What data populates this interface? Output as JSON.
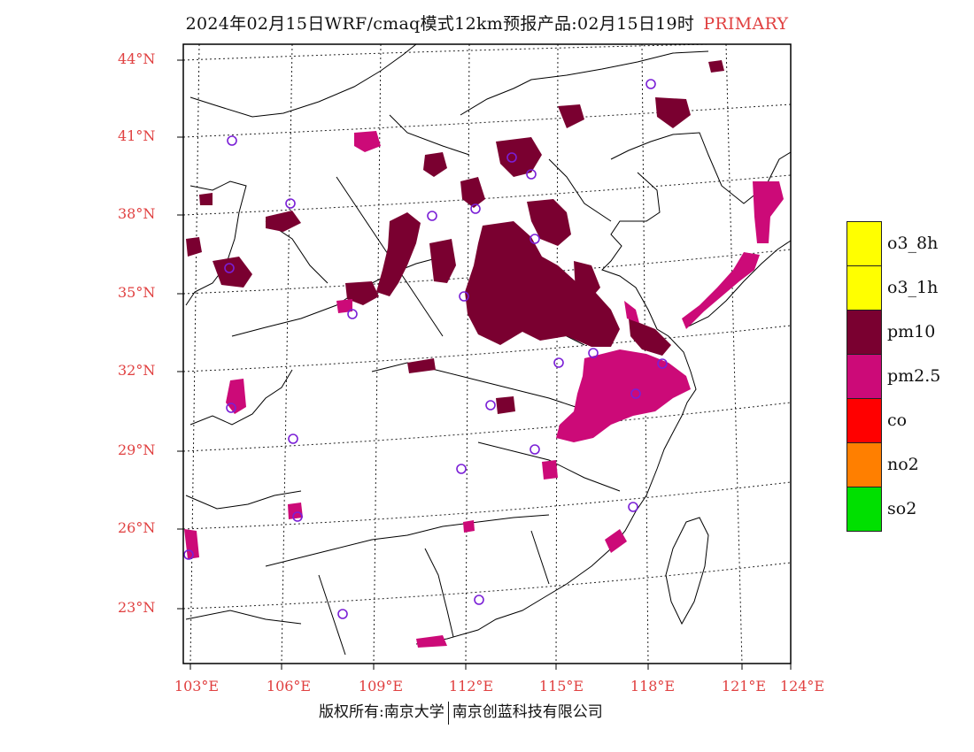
{
  "title": {
    "main": "2024年02月15日WRF/cmaq模式12km预报产品:02月15日19时",
    "tag": "PRIMARY"
  },
  "map": {
    "lat_labels": [
      "44°N",
      "41°N",
      "38°N",
      "35°N",
      "32°N",
      "29°N",
      "26°N",
      "23°N"
    ],
    "lon_labels": [
      "103°E",
      "106°E",
      "109°E",
      "112°E",
      "115°E",
      "118°E",
      "121°E",
      "124°E"
    ],
    "pollutant_colors": {
      "pm10": "#7a0030",
      "pm2.5": "#cc0a78"
    },
    "station_marker_color": "#7a1fd6"
  },
  "legend": {
    "items": [
      {
        "label": "o3_8h",
        "color": "#ffff00"
      },
      {
        "label": "o3_1h",
        "color": "#ffff00"
      },
      {
        "label": "pm10",
        "color": "#7a0030"
      },
      {
        "label": "pm2.5",
        "color": "#cc0a78"
      },
      {
        "label": "co",
        "color": "#ff0000"
      },
      {
        "label": "no2",
        "color": "#ff7f00"
      },
      {
        "label": "so2",
        "color": "#00e000"
      }
    ]
  },
  "footer": {
    "left": "版权所有:南京大学",
    "right": "南京创蓝科技有限公司"
  }
}
